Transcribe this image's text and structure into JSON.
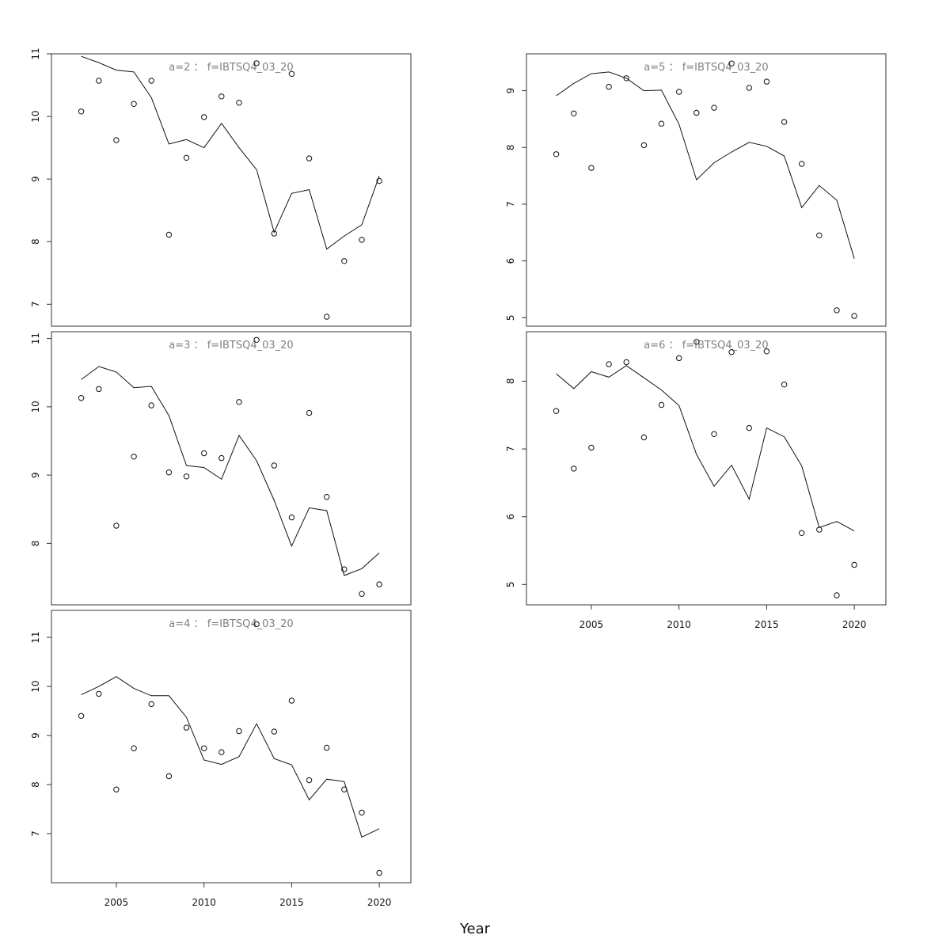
{
  "chart_data": {
    "type": "scatter",
    "xlabel": "Year",
    "x": [
      2003,
      2004,
      2005,
      2006,
      2007,
      2008,
      2009,
      2010,
      2011,
      2012,
      2013,
      2014,
      2015,
      2016,
      2017,
      2018,
      2019,
      2020
    ],
    "xlim": [
      2001.3,
      2021.8
    ],
    "xticks": [
      2005,
      2010,
      2015,
      2020
    ],
    "series_style": {
      "observed": "open-circles",
      "fitted": "line"
    },
    "panels": [
      {
        "title": "a=2 ： f=IBTSQ4_03_20",
        "ylim": [
          6.65,
          11.0
        ],
        "yticks": [
          7,
          8,
          9,
          10,
          11
        ],
        "observed": [
          10.08,
          10.57,
          9.62,
          10.2,
          10.57,
          8.11,
          9.34,
          9.99,
          10.32,
          10.22,
          10.85,
          8.13,
          10.68,
          9.33,
          6.8,
          7.69,
          8.03,
          8.97
        ],
        "fitted": [
          10.96,
          10.86,
          10.74,
          10.71,
          10.3,
          9.56,
          9.63,
          9.5,
          9.89,
          9.5,
          9.15,
          8.15,
          8.77,
          8.83,
          7.88,
          8.09,
          8.27,
          9.05
        ]
      },
      {
        "title": "a=3 ： f=IBTSQ4_03_20",
        "ylim": [
          7.1,
          11.1
        ],
        "yticks": [
          8,
          9,
          10,
          11
        ],
        "observed": [
          10.13,
          10.26,
          8.26,
          9.27,
          10.02,
          9.04,
          8.98,
          9.32,
          9.25,
          10.07,
          10.98,
          9.14,
          8.38,
          9.91,
          8.68,
          7.62,
          7.26,
          7.4
        ],
        "fitted": [
          10.4,
          10.59,
          10.51,
          10.28,
          10.3,
          9.87,
          9.14,
          9.11,
          8.94,
          9.58,
          9.21,
          8.63,
          7.96,
          8.52,
          8.48,
          7.53,
          7.63,
          7.86
        ]
      },
      {
        "title": "a=4 ： f=IBTSQ4_03_20",
        "ylim": [
          6.0,
          11.55
        ],
        "yticks": [
          7,
          8,
          9,
          10,
          11
        ],
        "observed": [
          9.4,
          9.85,
          7.9,
          8.74,
          9.64,
          8.17,
          9.16,
          8.74,
          8.66,
          9.09,
          11.27,
          9.08,
          9.71,
          8.09,
          8.75,
          7.9,
          7.43,
          6.2
        ],
        "fitted": [
          9.83,
          10.0,
          10.2,
          9.96,
          9.81,
          9.81,
          9.37,
          8.5,
          8.41,
          8.57,
          9.24,
          8.53,
          8.4,
          7.69,
          8.11,
          8.06,
          6.93,
          7.1
        ]
      },
      {
        "title": "a=5 ： f=IBTSQ4_03_20",
        "ylim": [
          4.85,
          9.65
        ],
        "yticks": [
          5,
          6,
          7,
          8,
          9
        ],
        "observed": [
          7.88,
          8.6,
          7.64,
          9.07,
          9.22,
          8.04,
          8.42,
          8.98,
          8.61,
          8.7,
          9.48,
          9.05,
          9.16,
          8.45,
          7.71,
          6.45,
          5.13,
          5.03
        ],
        "fitted": [
          8.91,
          9.13,
          9.3,
          9.33,
          9.22,
          9.0,
          9.01,
          8.41,
          7.43,
          7.73,
          7.92,
          8.09,
          8.02,
          7.85,
          6.94,
          7.33,
          7.07,
          6.04
        ]
      },
      {
        "title": "a=6 ： f=IBTSQ4_03_20",
        "ylim": [
          4.7,
          8.73
        ],
        "yticks": [
          5,
          6,
          7,
          8
        ],
        "observed": [
          7.56,
          6.71,
          7.02,
          8.25,
          8.28,
          7.17,
          7.65,
          8.34,
          8.58,
          7.22,
          8.43,
          7.31,
          8.44,
          7.95,
          5.76,
          5.81,
          4.84,
          5.29
        ],
        "fitted": [
          8.11,
          7.89,
          8.14,
          8.06,
          8.23,
          8.05,
          7.87,
          7.64,
          6.92,
          6.45,
          6.76,
          6.26,
          7.31,
          7.18,
          6.75,
          5.84,
          5.93,
          5.79
        ]
      }
    ]
  }
}
